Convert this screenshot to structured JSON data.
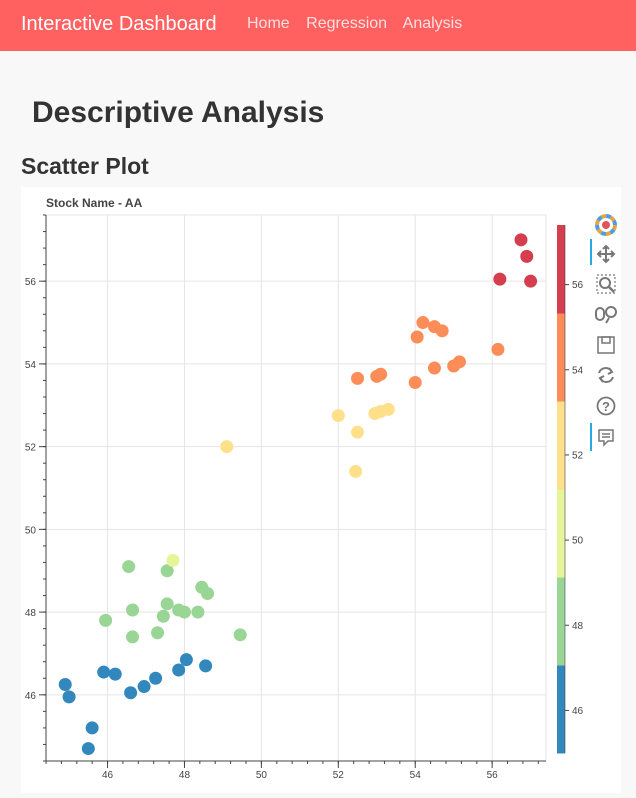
{
  "navbar": {
    "brand": "Interactive Dashboard",
    "links": [
      "Home",
      "Regression",
      "Analysis"
    ],
    "background": "#ff6161"
  },
  "page": {
    "title": "Descriptive Analysis",
    "section_title": "Scatter Plot"
  },
  "toolbar": {
    "tools": [
      "bokeh-logo-icon",
      "pan-icon",
      "box-zoom-icon",
      "wheel-zoom-icon",
      "save-icon",
      "reset-icon",
      "help-icon",
      "hover-icon"
    ]
  },
  "chart_data": {
    "type": "scatter",
    "title": "Stock Name - AA",
    "xlabel": "",
    "ylabel": "",
    "xlim": [
      44.4,
      57.4
    ],
    "ylim": [
      44.4,
      57.6
    ],
    "x_ticks": [
      46,
      48,
      50,
      52,
      54,
      56
    ],
    "y_ticks": [
      46,
      48,
      50,
      52,
      54,
      56
    ],
    "grid": true,
    "colorbar": {
      "range": [
        45,
        57.4
      ],
      "ticks": [
        46,
        48,
        50,
        52,
        54,
        56
      ],
      "palette": [
        "#3288bd",
        "#99d594",
        "#e6f598",
        "#fee08b",
        "#fc8d59",
        "#d53e4f"
      ]
    },
    "points": [
      {
        "x": 44.9,
        "y": 46.25
      },
      {
        "x": 45.0,
        "y": 45.95
      },
      {
        "x": 45.6,
        "y": 45.2
      },
      {
        "x": 45.5,
        "y": 44.7
      },
      {
        "x": 45.9,
        "y": 46.55
      },
      {
        "x": 46.2,
        "y": 46.5
      },
      {
        "x": 46.6,
        "y": 46.05
      },
      {
        "x": 46.95,
        "y": 46.2
      },
      {
        "x": 47.25,
        "y": 46.4
      },
      {
        "x": 47.85,
        "y": 46.6
      },
      {
        "x": 48.05,
        "y": 46.85
      },
      {
        "x": 48.55,
        "y": 46.7
      },
      {
        "x": 45.95,
        "y": 47.8
      },
      {
        "x": 46.65,
        "y": 47.4
      },
      {
        "x": 46.65,
        "y": 48.05
      },
      {
        "x": 47.3,
        "y": 47.5
      },
      {
        "x": 47.45,
        "y": 47.9
      },
      {
        "x": 47.55,
        "y": 48.2
      },
      {
        "x": 47.85,
        "y": 48.05
      },
      {
        "x": 48.0,
        "y": 48.0
      },
      {
        "x": 48.35,
        "y": 48.0
      },
      {
        "x": 48.45,
        "y": 48.6
      },
      {
        "x": 48.6,
        "y": 48.45
      },
      {
        "x": 49.45,
        "y": 47.45
      },
      {
        "x": 47.55,
        "y": 49.0
      },
      {
        "x": 46.55,
        "y": 49.1
      },
      {
        "x": 47.7,
        "y": 49.25
      },
      {
        "x": 49.1,
        "y": 52.0
      },
      {
        "x": 52.0,
        "y": 52.75
      },
      {
        "x": 52.45,
        "y": 51.4
      },
      {
        "x": 52.5,
        "y": 52.35
      },
      {
        "x": 52.95,
        "y": 52.8
      },
      {
        "x": 53.1,
        "y": 52.85
      },
      {
        "x": 53.3,
        "y": 52.9
      },
      {
        "x": 52.5,
        "y": 53.65
      },
      {
        "x": 53.0,
        "y": 53.7
      },
      {
        "x": 53.1,
        "y": 53.75
      },
      {
        "x": 54.0,
        "y": 53.55
      },
      {
        "x": 54.5,
        "y": 53.9
      },
      {
        "x": 54.05,
        "y": 54.65
      },
      {
        "x": 54.2,
        "y": 55.0
      },
      {
        "x": 54.5,
        "y": 54.9
      },
      {
        "x": 54.7,
        "y": 54.8
      },
      {
        "x": 55.0,
        "y": 53.95
      },
      {
        "x": 55.15,
        "y": 54.05
      },
      {
        "x": 56.15,
        "y": 54.35
      },
      {
        "x": 56.2,
        "y": 56.05
      },
      {
        "x": 56.75,
        "y": 57.0
      },
      {
        "x": 56.9,
        "y": 56.6
      },
      {
        "x": 57.0,
        "y": 56.0
      }
    ]
  }
}
